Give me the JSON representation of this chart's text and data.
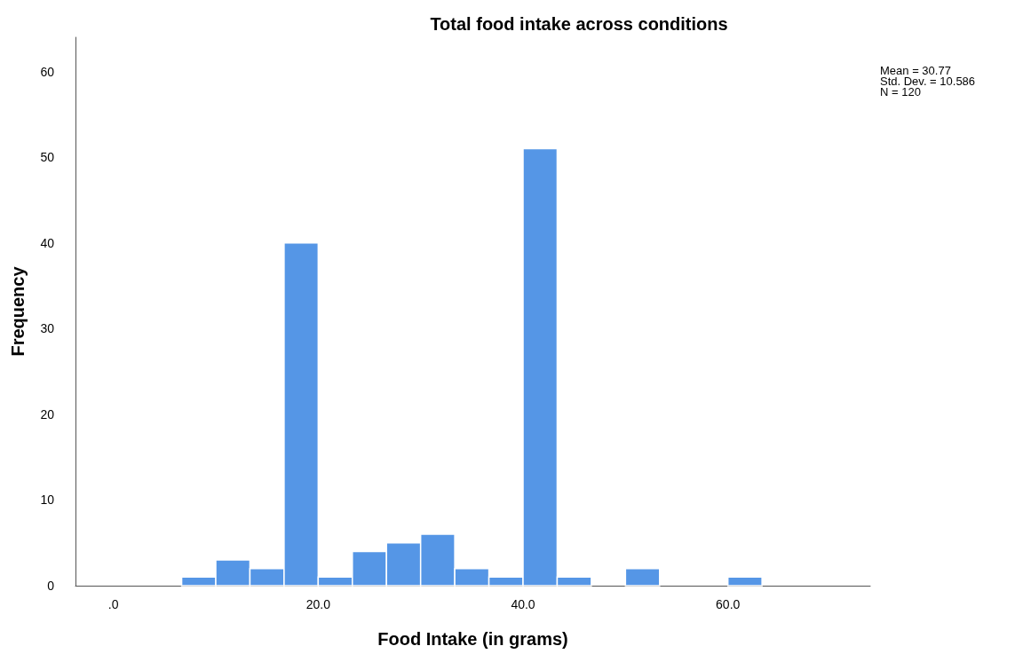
{
  "chart_data": {
    "type": "histogram",
    "title": "Total food intake across conditions",
    "xlabel": "Food Intake (in grams)",
    "ylabel": "Frequency",
    "bins": [
      6.667,
      10,
      13.333,
      16.667,
      20,
      23.333,
      26.667,
      30,
      33.333,
      36.667,
      40,
      43.333,
      46.667,
      50,
      53.333,
      56.667,
      60,
      63.333
    ],
    "values": [
      1,
      3,
      2,
      40,
      1,
      4,
      5,
      6,
      2,
      1,
      51,
      1,
      0,
      2,
      0,
      0,
      1
    ],
    "color": "#5596e6",
    "xlim": [
      -3.7,
      73.9
    ],
    "xticks": [
      {
        "value": 0,
        "label": ".0"
      },
      {
        "value": 20,
        "label": "20.0"
      },
      {
        "value": 40,
        "label": "40.0"
      },
      {
        "value": 60,
        "label": "60.0"
      }
    ],
    "ylim": [
      0,
      64
    ],
    "yticks": [
      0,
      10,
      20,
      30,
      40,
      50,
      60
    ],
    "grid": false,
    "annotations": [
      "Mean = 30.77",
      "Std. Dev. = 10.586",
      "N = 120"
    ]
  }
}
